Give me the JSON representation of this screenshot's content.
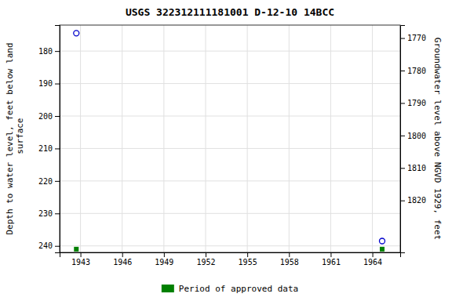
{
  "chart_data": {
    "type": "scatter",
    "title": "USGS 322312111181001 D-12-10 14BCC",
    "ylabel": "Depth to water level, feet below land\n surface",
    "y2label": "Groundwater level above NGVD 1929, feet",
    "xlim": [
      1941.5,
      1966.0
    ],
    "ylim": [
      242,
      172
    ],
    "y2lim": [
      1836,
      1766
    ],
    "xticks": [
      1943,
      1946,
      1949,
      1952,
      1955,
      1958,
      1961,
      1964
    ],
    "yticks": [
      180,
      190,
      200,
      210,
      220,
      230,
      240
    ],
    "y2ticks": [
      1820,
      1810,
      1800,
      1790,
      1780,
      1770
    ],
    "grid": true,
    "legend": "bottom",
    "series": [
      {
        "color": "#0000cc",
        "marker": "circle-open",
        "x": [
          1942.7,
          1964.7
        ],
        "values": [
          174.5,
          238.5
        ]
      },
      {
        "name": "Period of approved data",
        "color": "#008000",
        "marker": "square",
        "x": [
          1942.7,
          1964.7
        ],
        "values": [
          241.0,
          241.0
        ]
      }
    ]
  }
}
